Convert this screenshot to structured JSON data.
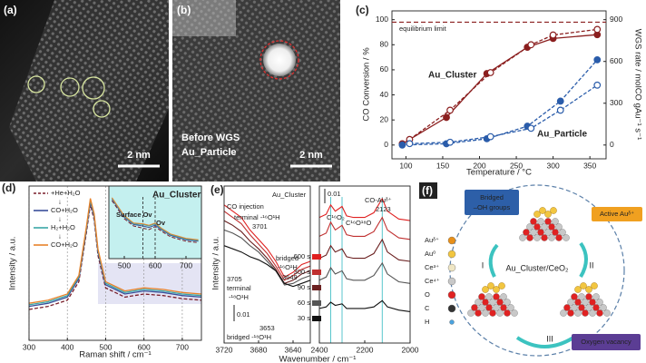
{
  "panel_a": {
    "label": "(a)",
    "scale_bar": "2 nm"
  },
  "panel_b": {
    "label": "(b)",
    "caption": [
      "Before WGS",
      "Au_Particle"
    ],
    "scale_bar": "2 nm"
  },
  "panel_f": {
    "label": "(f)",
    "center": "Au_Cluster/CeO₂",
    "bridged_oh": [
      "Bridged",
      "–OH groups"
    ],
    "active": "Active Auᵟ⁺",
    "vacancy": "Oxygen vacancy",
    "steps": [
      "I",
      "II",
      "III"
    ],
    "legend": [
      {
        "name": "Auᵟ⁺",
        "color": "#e8901a"
      },
      {
        "name": "Au⁰",
        "color": "#f2c640"
      },
      {
        "name": "Ce³⁺",
        "color": "#efe6c4"
      },
      {
        "name": "Ce⁴⁺",
        "color": "#c8c8c8"
      },
      {
        "name": "O",
        "color": "#e02222"
      },
      {
        "name": "C",
        "color": "#333333"
      },
      {
        "name": "H",
        "color": "#4aa3df"
      }
    ]
  },
  "chart_data": [
    {
      "type": "line",
      "label": "(c)",
      "xlabel": "Temperature / °C",
      "ylabel": "CO Conversion / %",
      "y2label": "WGS rate / molCO gAu⁻¹ s⁻¹",
      "xlim": [
        81,
        372
      ],
      "ylim": [
        -11,
        107
      ],
      "y2lim": [
        -99,
        963
      ],
      "xticks": [
        100,
        150,
        200,
        250,
        300,
        350
      ],
      "yticks": [
        0,
        20,
        40,
        60,
        80,
        100
      ],
      "y2ticks": [
        0,
        300,
        600,
        900
      ],
      "reference_line": 98,
      "annotations": [
        "equilibrium limit",
        "Au_Cluster",
        "Au_Particle"
      ],
      "series": [
        {
          "color": "#8b1f1f",
          "marker": "filled",
          "dash": false,
          "x": [
            95,
            155,
            210,
            265,
            300,
            360
          ],
          "values": [
            1,
            22,
            57,
            78,
            85,
            88
          ]
        },
        {
          "color": "#8b1f1f",
          "marker": "open",
          "dash": true,
          "axis": "y2",
          "x": [
            105,
            160,
            215,
            270,
            300,
            360
          ],
          "values": [
            40,
            250,
            520,
            720,
            790,
            830
          ]
        },
        {
          "color": "#2a5caa",
          "marker": "filled",
          "dash": true,
          "x": [
            95,
            155,
            210,
            265,
            310,
            360
          ],
          "values": [
            0,
            1,
            5,
            15,
            35,
            68
          ]
        },
        {
          "color": "#2a5caa",
          "marker": "open",
          "dash": true,
          "axis": "y2",
          "x": [
            105,
            160,
            215,
            270,
            310,
            360
          ],
          "values": [
            10,
            20,
            60,
            120,
            250,
            430
          ]
        }
      ]
    },
    {
      "type": "line",
      "label": "(d)",
      "xlabel": "Raman shift / cm⁻¹",
      "ylabel": "Intensity / a.u.",
      "xlim": [
        300,
        750
      ],
      "ylim": [
        0,
        100
      ],
      "xticks": [
        300,
        400,
        500,
        600,
        700
      ],
      "grid": true,
      "legend_separator": "↓",
      "x": [
        300,
        350,
        400,
        430,
        450,
        460,
        470,
        480,
        500,
        550,
        600,
        650,
        700,
        750
      ],
      "series": [
        {
          "name": "+He+H₂O",
          "color": "#7a1f2b",
          "dash": true,
          "values": [
            20,
            22,
            26,
            38,
            70,
            88,
            78,
            55,
            34,
            28,
            30,
            29,
            27,
            26
          ]
        },
        {
          "name": "CO+H₂O",
          "color": "#3a4f9a",
          "dash": false,
          "values": [
            22,
            24,
            28,
            40,
            72,
            90,
            80,
            57,
            36,
            30,
            32,
            31,
            29,
            28
          ]
        },
        {
          "name": "H₂+H₂O",
          "color": "#3aa6a6",
          "dash": false,
          "values": [
            23,
            25,
            29,
            41,
            73,
            91,
            81,
            58,
            37,
            31,
            33,
            32,
            30,
            29
          ]
        },
        {
          "name": "CO+H₂O",
          "color": "#e8822a",
          "dash": false,
          "values": [
            24,
            26,
            30,
            42,
            74,
            92,
            82,
            59,
            38,
            32,
            34,
            33,
            31,
            30
          ]
        }
      ]
    },
    {
      "type": "line",
      "title": "Au_Cluster",
      "annotations": [
        "Surface Ov",
        "Ov"
      ],
      "xlim": [
        450,
        750
      ],
      "ylim": [
        0,
        100
      ],
      "xticks": [
        500,
        600,
        700
      ],
      "reference_x": [
        560,
        600
      ],
      "x": [
        460,
        500,
        530,
        560,
        580,
        600,
        620,
        650,
        700,
        740
      ],
      "series": [
        {
          "color": "#7a1f2b",
          "dash": true,
          "values": [
            80,
            55,
            45,
            42,
            40,
            44,
            38,
            30,
            24,
            22
          ]
        },
        {
          "color": "#3a4f9a",
          "dash": false,
          "values": [
            82,
            57,
            47,
            45,
            43,
            46,
            40,
            32,
            26,
            24
          ]
        },
        {
          "color": "#3aa6a6",
          "dash": false,
          "values": [
            83,
            58,
            48,
            47,
            45,
            48,
            41,
            33,
            27,
            25
          ]
        },
        {
          "color": "#e8822a",
          "dash": false,
          "values": [
            84,
            59,
            49,
            48,
            46,
            49,
            42,
            34,
            28,
            26
          ]
        }
      ]
    },
    {
      "type": "line",
      "label": "(e)",
      "title": "Au_Cluster",
      "ylabel": "Intensity / a.u.",
      "scale_bar": "0.01",
      "xlim": [
        3720,
        3620
      ],
      "ylim": [
        0,
        100
      ],
      "xticks": [
        3720,
        3680,
        3640
      ],
      "annotations": [
        "CO injection",
        "terminal -¹⁶O¹H",
        "3701",
        "bridged",
        "-¹⁶O¹H",
        "3649",
        "3705",
        "terminal",
        "-¹⁸O¹H",
        "3653",
        "bridged -¹⁸O¹H"
      ],
      "x": [
        3720,
        3710,
        3700,
        3690,
        3680,
        3670,
        3660,
        3650,
        3640,
        3630,
        3620
      ],
      "series": [
        {
          "color": "#e02020",
          "values": [
            88,
            84,
            80,
            72,
            66,
            60,
            52,
            42,
            45,
            50,
            52
          ]
        },
        {
          "color": "#c03030",
          "values": [
            84,
            80,
            76,
            69,
            63,
            57,
            49,
            40,
            43,
            47,
            49
          ]
        },
        {
          "color": "#6b2020",
          "values": [
            78,
            75,
            71,
            65,
            60,
            54,
            47,
            38,
            40,
            44,
            46
          ]
        },
        {
          "color": "#555555",
          "values": [
            72,
            70,
            67,
            62,
            58,
            52,
            46,
            37,
            38,
            41,
            43
          ]
        },
        {
          "color": "#111111",
          "values": [
            62,
            60,
            58,
            55,
            53,
            50,
            46,
            38,
            36,
            38,
            40
          ]
        }
      ]
    },
    {
      "type": "line",
      "xlabel": "Wavenumber / cm⁻¹",
      "scale_bar": "0.01",
      "xlim": [
        2400,
        2000
      ],
      "ylim": [
        0,
        100
      ],
      "xticks": [
        2400,
        2200,
        2000
      ],
      "reference_x": [
        2350,
        2300,
        2123
      ],
      "annotations": [
        "CO-Auᵟ⁺",
        "2123",
        "C¹⁶O₂",
        "C¹⁶O¹⁸O"
      ],
      "x": [
        2400,
        2370,
        2350,
        2330,
        2300,
        2280,
        2250,
        2200,
        2160,
        2123,
        2100,
        2050,
        2000
      ],
      "series": [
        {
          "name": "600 s",
          "color": "#e02020",
          "values": [
            80,
            82,
            88,
            84,
            87,
            81,
            80,
            80,
            83,
            92,
            84,
            79,
            78
          ]
        },
        {
          "name": "300 s",
          "color": "#c03030",
          "values": [
            68,
            70,
            77,
            72,
            75,
            69,
            68,
            68,
            71,
            80,
            72,
            67,
            66
          ]
        },
        {
          "name": "90 s",
          "color": "#6b2020",
          "values": [
            54,
            56,
            62,
            58,
            60,
            55,
            54,
            54,
            57,
            66,
            58,
            53,
            52
          ]
        },
        {
          "name": "60 s",
          "color": "#555555",
          "values": [
            40,
            42,
            48,
            44,
            46,
            41,
            40,
            40,
            43,
            51,
            44,
            39,
            38
          ]
        },
        {
          "name": "30 s",
          "color": "#111111",
          "values": [
            22,
            23,
            26,
            24,
            25,
            22,
            22,
            22,
            23,
            27,
            23,
            21,
            20
          ]
        }
      ]
    }
  ]
}
